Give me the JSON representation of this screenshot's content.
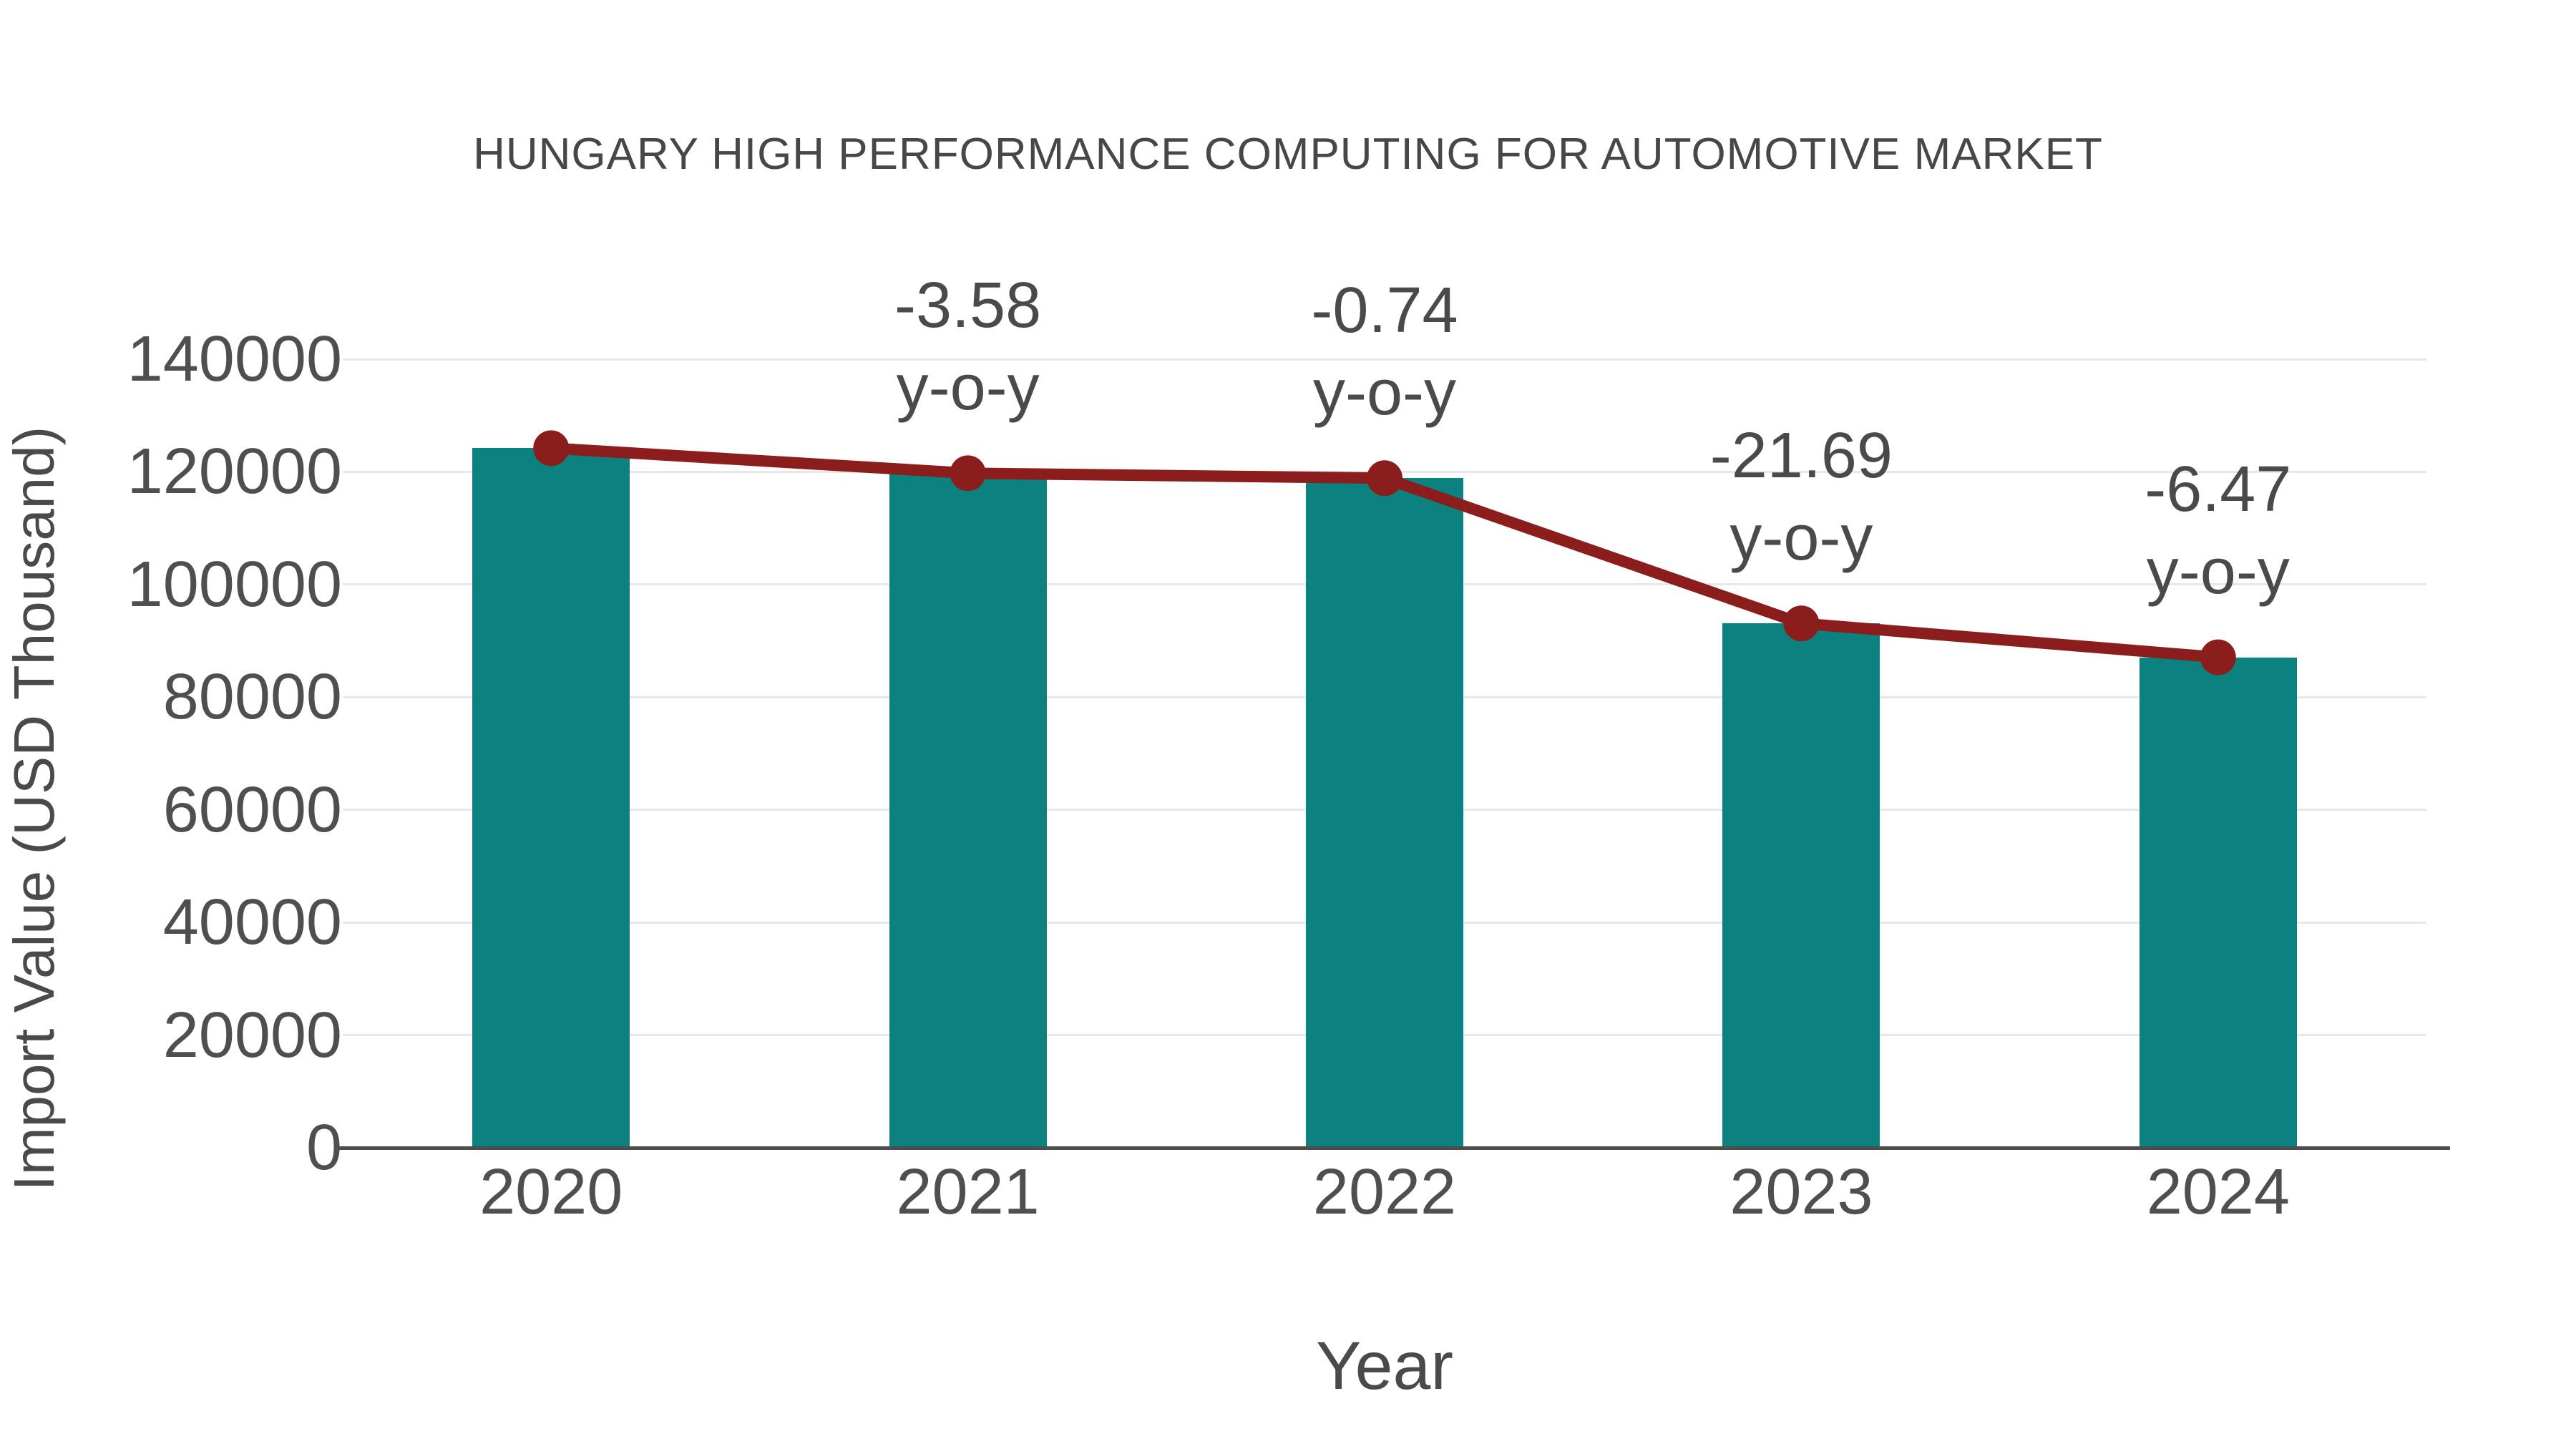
{
  "figure": {
    "title": "HUNGARY HIGH PERFORMANCE COMPUTING FOR AUTOMOTIVE MARKET",
    "x_axis_label": "Year",
    "y_axis_label": "Import Value (USD Thousand)"
  },
  "chart_data": {
    "type": "bar",
    "title": "HUNGARY HIGH PERFORMANCE COMPUTING FOR AUTOMOTIVE MARKET",
    "xlabel": "Year",
    "ylabel": "Import Value (USD Thousand)",
    "categories": [
      "2020",
      "2021",
      "2022",
      "2023",
      "2024"
    ],
    "series": [
      {
        "name": "Import Value bars",
        "type": "bar",
        "values": [
          124200,
          119760,
          118880,
          93090,
          87070
        ]
      },
      {
        "name": "Import Value trend",
        "type": "line",
        "values": [
          124200,
          119760,
          118880,
          93090,
          87070
        ]
      }
    ],
    "annotations": [
      {
        "category": "2021",
        "line1": "-3.58",
        "line2": "y-o-y"
      },
      {
        "category": "2022",
        "line1": "-0.74",
        "line2": "y-o-y"
      },
      {
        "category": "2023",
        "line1": "-21.69",
        "line2": "y-o-y"
      },
      {
        "category": "2024",
        "line1": "-6.47",
        "line2": "y-o-y"
      }
    ],
    "ylim": [
      0,
      140000
    ],
    "ytick_labels": [
      "0",
      "20000",
      "40000",
      "60000",
      "80000",
      "100000",
      "120000",
      "140000"
    ],
    "grid": true,
    "legend_position": "none",
    "colors": {
      "bar": "#0b8280",
      "line": "#8b1d1d",
      "marker": "#8b1d1d",
      "grid": "#e8e8e8",
      "axis": "#4d4d4d",
      "text": "#4a4a4a"
    }
  }
}
